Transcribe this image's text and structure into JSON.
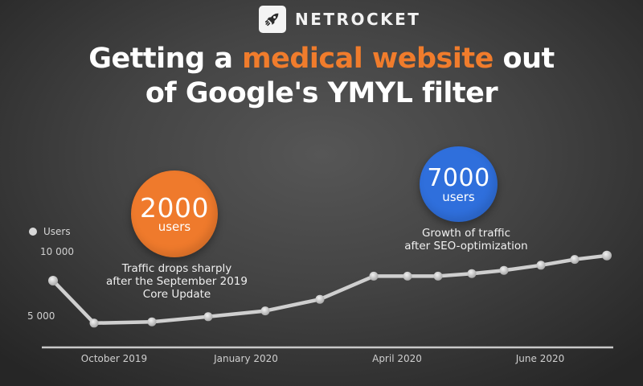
{
  "brand": {
    "name": "NETROCKET",
    "logo_icon": "rocket-icon"
  },
  "title": {
    "part1": "Getting a ",
    "highlight": "medical website",
    "part2": " out",
    "line2": "of Google's YMYL filter",
    "accent_color": "#f07c2c"
  },
  "callouts": {
    "drop": {
      "value": "2000",
      "unit": "users",
      "color": "#ef7a2c",
      "caption_lines": [
        "Traffic drops sharply",
        "after the September 2019",
        "Core Update"
      ]
    },
    "growth": {
      "value": "7000",
      "unit": "users",
      "color": "#2f6fdc",
      "caption_lines": [
        "Growth of traffic",
        "after SEO-optimization"
      ]
    }
  },
  "chart_data": {
    "type": "line",
    "title": "Getting a medical website out of Google's YMYL filter",
    "xlabel": "",
    "ylabel": "Users",
    "legend": [
      "Users"
    ],
    "legend_position": "top-left",
    "grid": false,
    "ylim": [
      0,
      10000
    ],
    "y_ticks": [
      {
        "label": "10 000",
        "value": 10000
      },
      {
        "label": "5 000",
        "value": 5000
      }
    ],
    "x_tick_labels": [
      "October 2019",
      "January 2020",
      "April 2020",
      "June 2020"
    ],
    "series": [
      {
        "name": "Users",
        "values": [
          7750,
          4450,
          4550,
          4950,
          5400,
          6300,
          8100,
          8100,
          8100,
          8300,
          8550,
          8950,
          9400,
          9700
        ]
      }
    ],
    "annotations": [
      {
        "text": "2000 users — Traffic drops sharply after the September 2019 Core Update"
      },
      {
        "text": "7000 users — Growth of traffic after SEO-optimization"
      }
    ]
  }
}
